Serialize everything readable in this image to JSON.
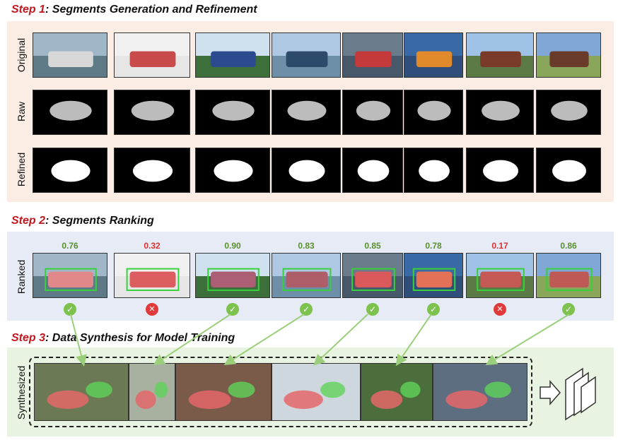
{
  "step1": {
    "num": "Step 1",
    "title": ": Segments Generation and Refinement"
  },
  "step2": {
    "num": "Step 2",
    "title": ": Segments Ranking"
  },
  "step3": {
    "num": "Step 3",
    "title": ": Data Synthesis for Model Training"
  },
  "rows": {
    "original": "Original",
    "raw": "Raw",
    "refined": "Refined",
    "ranked": "Ranked",
    "synthesized": "Synthesized"
  },
  "scores": [
    {
      "value": "0.76",
      "status": "pass"
    },
    {
      "value": "0.32",
      "status": "fail"
    },
    {
      "value": "0.90",
      "status": "pass"
    },
    {
      "value": "0.83",
      "status": "pass"
    },
    {
      "value": "0.85",
      "status": "pass"
    },
    {
      "value": "0.78",
      "status": "pass"
    },
    {
      "value": "0.17",
      "status": "fail"
    },
    {
      "value": "0.86",
      "status": "pass"
    }
  ],
  "colors": {
    "step1_bg": "#fbece4",
    "step2_bg": "#e7ebf6",
    "step3_bg": "#e9f3e1",
    "pass_score": "#5a8f2e",
    "fail_score": "#d63434",
    "accent_red": "#c0181e",
    "box_green": "#39d13b",
    "mask_red": "#e4676a"
  }
}
